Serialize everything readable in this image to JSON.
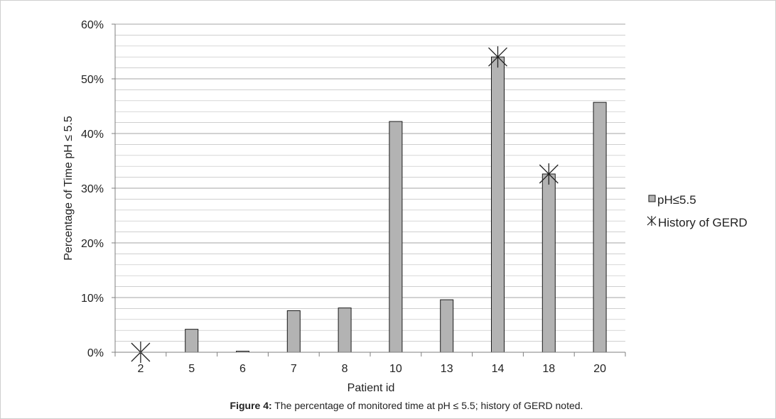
{
  "chart_data": {
    "type": "bar",
    "xlabel": "Patient id",
    "ylabel": "Percentage of Time pH ≤ 5.5",
    "categories": [
      "2",
      "5",
      "6",
      "7",
      "8",
      "10",
      "13",
      "14",
      "18",
      "20"
    ],
    "series": [
      {
        "name": "pH≤5.5",
        "values": [
          0,
          4.2,
          0.2,
          7.6,
          8.1,
          42.2,
          9.6,
          54.0,
          32.6,
          45.7
        ]
      }
    ],
    "markers": {
      "name": "History of GERD",
      "symbol": "asterisk",
      "categories": [
        "2",
        "14",
        "18"
      ]
    },
    "ylim": [
      0,
      60
    ],
    "yticks": [
      "0%",
      "10%",
      "20%",
      "30%",
      "40%",
      "50%",
      "60%"
    ],
    "grid": true,
    "legend_position": "right",
    "colors": {
      "bar_fill": "#b3b3b3",
      "bar_stroke": "#1a1a1a",
      "grid": "#bfbfbf"
    }
  },
  "caption": {
    "label": "Figure 4:",
    "text": " The percentage of monitored time at pH ≤ 5.5; history of GERD noted."
  }
}
